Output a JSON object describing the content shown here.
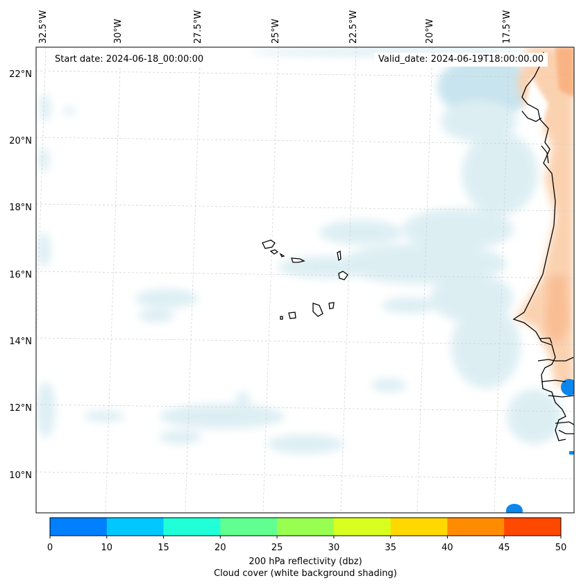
{
  "map": {
    "start_date": "Start date: 2024-06-18_00:00:00",
    "valid_date": "Valid_date: 2024-06-19T18:00:00.00",
    "lon_ticks": [
      "32.5°W",
      "30°W",
      "27.5°W",
      "25°W",
      "22.5°W",
      "20°W",
      "17.5°W"
    ],
    "lat_ticks": [
      "22°N",
      "20°N",
      "18°N",
      "16°N",
      "14°N",
      "12°N",
      "10°N"
    ]
  },
  "colorbar": {
    "ticks": [
      "0",
      "10",
      "15",
      "20",
      "25",
      "30",
      "35",
      "40",
      "45",
      "50"
    ],
    "colors": [
      "#0080ff",
      "#00c8ff",
      "#20ffd8",
      "#60ff90",
      "#98ff50",
      "#d8ff20",
      "#ffd800",
      "#ff8c00",
      "#ff4800"
    ],
    "label_line1": "200 hPa reflectivity (dbz)",
    "label_line2": "Cloud cover (white background shading)"
  },
  "colors": {
    "cloud": "#d8ecf2",
    "land": "#fbd2b0",
    "reflectivity_low": "#0080ff",
    "coast": "#000000",
    "grid": "#cccccc"
  }
}
